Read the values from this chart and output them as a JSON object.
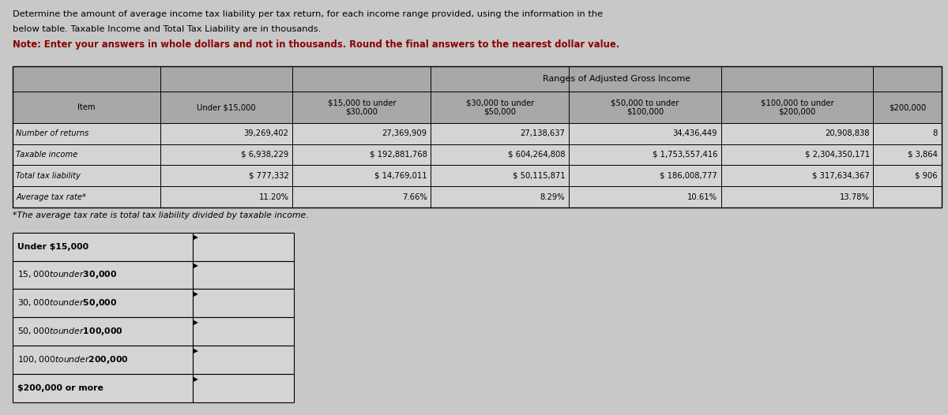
{
  "title_line1": "Determine the amount of average income tax liability per tax return, for each income range provided, using the information in the",
  "title_line2": "below table. Taxable Income and Total Tax Liability are in thousands.",
  "title_line3": "Note: Enter your answers in whole dollars and not in thousands. Round the final answers to the nearest dollar value.",
  "bg_color": "#c8c8c8",
  "table_header_bg": "#a8a8a8",
  "table_row_bg": "#d4d4d4",
  "ranges_header": "Ranges of Adjusted Gross Income",
  "col_headers": [
    "Item",
    "Under $15,000",
    "$15,000 to under\n$30,000",
    "$30,000 to under\n$50,000",
    "$50,000 to under\n$100,000",
    "$100,000 to under\n$200,000",
    "$200,000"
  ],
  "rows": [
    [
      "Number of returns",
      "39,269,402",
      "27,369,909",
      "27,138,637",
      "34,436,449",
      "20,908,838",
      "8"
    ],
    [
      "Taxable income",
      "$ 6,938,229",
      "$ 192,881,768",
      "$ 604,264,808",
      "$ 1,753,557,416",
      "$ 2,304,350,171",
      "$ 3,864"
    ],
    [
      "Total tax liability",
      "$ 777,332",
      "$ 14,769,011",
      "$ 50,115,871",
      "$ 186,008,777",
      "$ 317,634,367",
      "$ 906"
    ],
    [
      "Average tax rate*",
      "11.20%",
      "7.66%",
      "8.29%",
      "10.61%",
      "13.78%",
      ""
    ]
  ],
  "footnote": "*The average tax rate is total tax liability divided by taxable income.",
  "answer_rows": [
    "Under $15,000",
    "$15,000 to under $30,000",
    "$30,000 to under $50,000",
    "$50,000 to under $100,000",
    "$100,000 to under $200,000",
    "$200,000 or more"
  ],
  "answer_box_color": "#d4d4d4"
}
